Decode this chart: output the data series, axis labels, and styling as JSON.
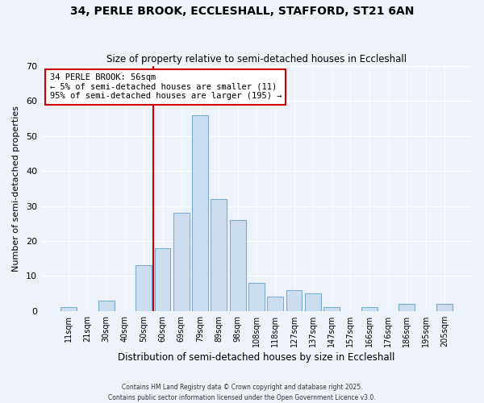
{
  "title": "34, PERLE BROOK, ECCLESHALL, STAFFORD, ST21 6AN",
  "subtitle": "Size of property relative to semi-detached houses in Eccleshall",
  "xlabel": "Distribution of semi-detached houses by size in Eccleshall",
  "ylabel": "Number of semi-detached properties",
  "bar_color": "#ccddf0",
  "bar_edge_color": "#7aacce",
  "background_color": "#eef2fa",
  "grid_color": "#ffffff",
  "categories": [
    "11sqm",
    "21sqm",
    "30sqm",
    "40sqm",
    "50sqm",
    "60sqm",
    "69sqm",
    "79sqm",
    "89sqm",
    "98sqm",
    "108sqm",
    "118sqm",
    "127sqm",
    "137sqm",
    "147sqm",
    "157sqm",
    "166sqm",
    "176sqm",
    "186sqm",
    "195sqm",
    "205sqm"
  ],
  "values": [
    1,
    0,
    3,
    0,
    13,
    18,
    28,
    56,
    32,
    26,
    8,
    4,
    6,
    5,
    1,
    0,
    1,
    0,
    2,
    0,
    2
  ],
  "vline_index": 4.5,
  "vline_color": "#cc0000",
  "annotation_title": "34 PERLE BROOK: 56sqm",
  "annotation_line1": "← 5% of semi-detached houses are smaller (11)",
  "annotation_line2": "95% of semi-detached houses are larger (195) →",
  "ylim": [
    0,
    70
  ],
  "yticks": [
    0,
    10,
    20,
    30,
    40,
    50,
    60,
    70
  ],
  "footer1": "Contains HM Land Registry data © Crown copyright and database right 2025.",
  "footer2": "Contains public sector information licensed under the Open Government Licence v3.0."
}
